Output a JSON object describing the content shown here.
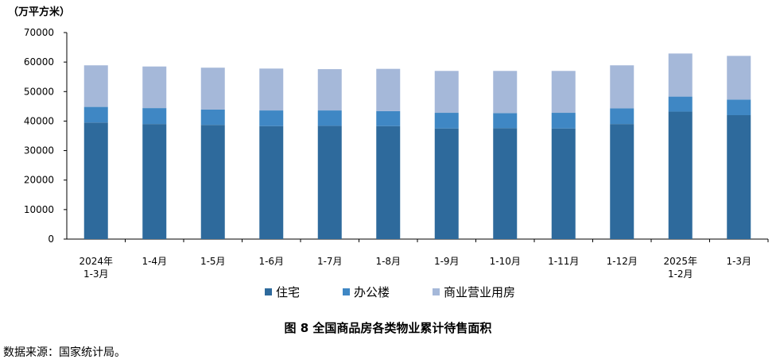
{
  "chart_data": {
    "type": "bar",
    "stacked": true,
    "unit_label": "（万平方米）",
    "categories": [
      [
        "2024年",
        "1-3月"
      ],
      [
        "1-4月"
      ],
      [
        "1-5月"
      ],
      [
        "1-6月"
      ],
      [
        "1-7月"
      ],
      [
        "1-8月"
      ],
      [
        "1-9月"
      ],
      [
        "1-10月"
      ],
      [
        "1-11月"
      ],
      [
        "1-12月"
      ],
      [
        "2025年",
        "1-2月"
      ],
      [
        "1-3月"
      ]
    ],
    "series": [
      {
        "name": "住宅",
        "color": "#2e6a9c",
        "values": [
          39500,
          39000,
          38700,
          38300,
          38400,
          38300,
          37500,
          37600,
          37500,
          39000,
          43200,
          42000
        ]
      },
      {
        "name": "办公楼",
        "color": "#3f87c4",
        "values": [
          5300,
          5400,
          5200,
          5300,
          5200,
          5100,
          5300,
          5100,
          5300,
          5300,
          5100,
          5300
        ]
      },
      {
        "name": "商业营业用房",
        "color": "#a5b8d9",
        "values": [
          14100,
          14100,
          14200,
          14200,
          14000,
          14300,
          14200,
          14300,
          14200,
          14600,
          14600,
          14800
        ]
      }
    ],
    "yticks": [
      0,
      10000,
      20000,
      30000,
      40000,
      50000,
      60000,
      70000
    ],
    "ylim": [
      0,
      70000
    ],
    "legend_position": "bottom",
    "caption": "图 8 全国商品房各类物业累计待售面积"
  },
  "source": "数据来源：国家统计局。"
}
